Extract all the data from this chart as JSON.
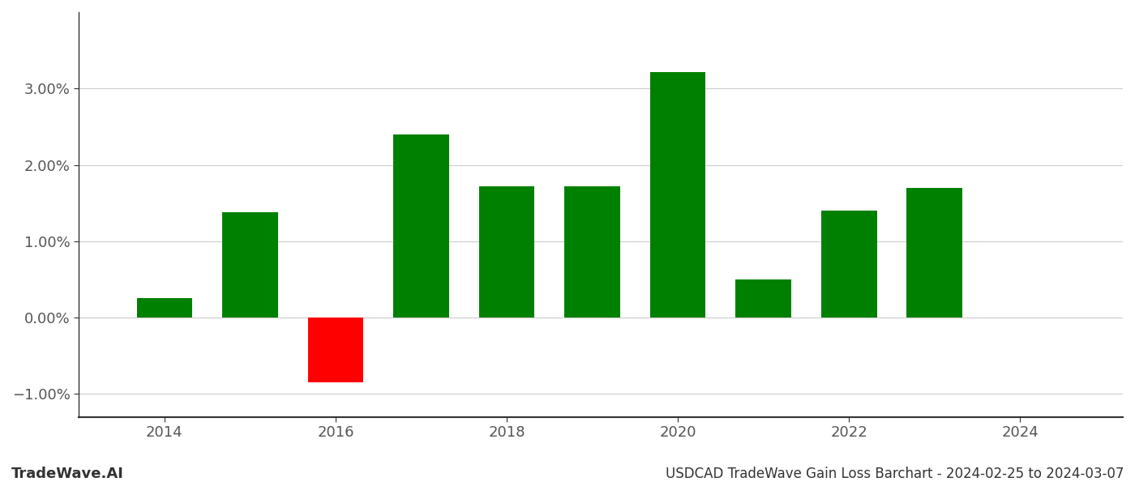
{
  "years": [
    2014,
    2015,
    2016,
    2017,
    2018,
    2019,
    2020,
    2021,
    2022,
    2023
  ],
  "values": [
    0.0025,
    0.0138,
    -0.0085,
    0.024,
    0.0172,
    0.0172,
    0.0322,
    0.005,
    0.014,
    0.017
  ],
  "colors": [
    "#008000",
    "#008000",
    "#ff0000",
    "#008000",
    "#008000",
    "#008000",
    "#008000",
    "#008000",
    "#008000",
    "#008000"
  ],
  "ylim": [
    -0.013,
    0.04
  ],
  "yticks": [
    -0.01,
    0.0,
    0.01,
    0.02,
    0.03
  ],
  "xticks": [
    2014,
    2016,
    2018,
    2020,
    2022,
    2024
  ],
  "title": "USDCAD TradeWave Gain Loss Barchart - 2024-02-25 to 2024-03-07",
  "watermark_left": "TradeWave.AI",
  "background_color": "#ffffff",
  "grid_color": "#cccccc",
  "bar_width": 0.65
}
